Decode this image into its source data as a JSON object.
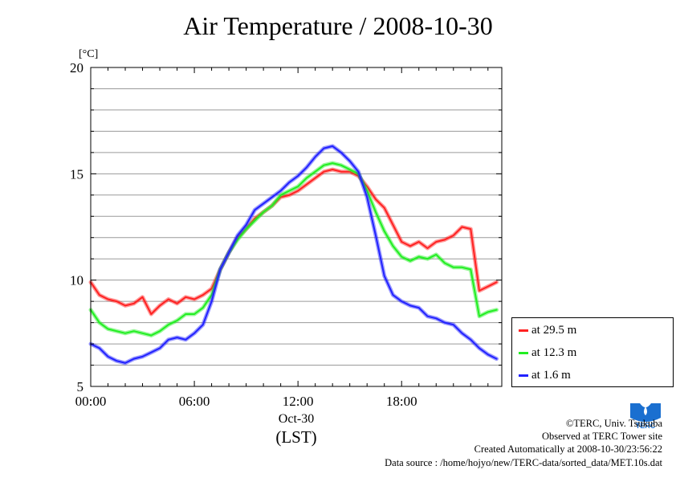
{
  "chart_data": {
    "type": "line",
    "title": "Air Temperature / 2008-10-30",
    "ylabel": "[°C]",
    "xlabel_date": "Oct-30",
    "xlabel_zone": "(LST)",
    "x_unit": "hour",
    "xlim": [
      0,
      23.8
    ],
    "ylim": [
      5,
      20
    ],
    "yticks": [
      5,
      10,
      15,
      20
    ],
    "yminor_step": 1,
    "xticks": [
      {
        "value": 0,
        "label": "00:00"
      },
      {
        "value": 6,
        "label": "06:00"
      },
      {
        "value": 12,
        "label": "12:00"
      },
      {
        "value": 18,
        "label": "18:00"
      }
    ],
    "grid": true,
    "legend_placement": "right-bottom outside",
    "x": [
      0,
      0.5,
      1,
      1.5,
      2,
      2.5,
      3,
      3.5,
      4,
      4.5,
      5,
      5.5,
      6,
      6.5,
      7,
      7.5,
      8,
      8.5,
      9,
      9.5,
      10,
      10.5,
      11,
      11.5,
      12,
      12.5,
      13,
      13.5,
      14,
      14.5,
      15,
      15.5,
      16,
      16.5,
      17,
      17.5,
      18,
      18.5,
      19,
      19.5,
      20,
      20.5,
      21,
      21.5,
      22,
      22.5,
      23,
      23.5
    ],
    "series": [
      {
        "name": "at 29.5 m",
        "color": "#ff2222",
        "values": [
          9.9,
          9.3,
          9.1,
          9.0,
          8.8,
          8.9,
          9.2,
          8.4,
          8.8,
          9.1,
          8.9,
          9.2,
          9.1,
          9.3,
          9.6,
          10.5,
          11.3,
          12.0,
          12.4,
          12.9,
          13.2,
          13.5,
          13.9,
          14.0,
          14.2,
          14.5,
          14.8,
          15.1,
          15.2,
          15.1,
          15.1,
          14.9,
          14.4,
          13.8,
          13.4,
          12.6,
          11.8,
          11.6,
          11.8,
          11.5,
          11.8,
          11.9,
          12.1,
          12.5,
          12.4,
          9.5,
          9.7,
          9.9
        ]
      },
      {
        "name": "at 12.3 m",
        "color": "#22ee22",
        "values": [
          8.6,
          8.0,
          7.7,
          7.6,
          7.5,
          7.6,
          7.5,
          7.4,
          7.6,
          7.9,
          8.1,
          8.4,
          8.4,
          8.7,
          9.3,
          10.5,
          11.3,
          11.9,
          12.4,
          12.8,
          13.2,
          13.5,
          14.0,
          14.2,
          14.4,
          14.8,
          15.1,
          15.4,
          15.5,
          15.4,
          15.2,
          15.0,
          14.2,
          13.2,
          12.3,
          11.6,
          11.1,
          10.9,
          11.1,
          11.0,
          11.2,
          10.8,
          10.6,
          10.6,
          10.5,
          8.3,
          8.5,
          8.6
        ]
      },
      {
        "name": "at 1.6 m",
        "color": "#2222ff",
        "values": [
          7.0,
          6.8,
          6.4,
          6.2,
          6.1,
          6.3,
          6.4,
          6.6,
          6.8,
          7.2,
          7.3,
          7.2,
          7.5,
          7.9,
          9.0,
          10.5,
          11.3,
          12.1,
          12.6,
          13.3,
          13.6,
          13.9,
          14.2,
          14.6,
          14.9,
          15.3,
          15.8,
          16.2,
          16.3,
          16.0,
          15.6,
          15.1,
          13.9,
          12.1,
          10.2,
          9.3,
          9.0,
          8.8,
          8.7,
          8.3,
          8.2,
          8.0,
          7.9,
          7.5,
          7.2,
          6.8,
          6.5,
          6.3
        ]
      }
    ]
  },
  "footer": {
    "copyright": "©TERC, Univ. Tsukuba",
    "observed": "Observed at TERC Tower site",
    "created": "Created Automatically at 2008-10-30/23:56:22",
    "source": "Data source : /home/hojyo/new/TERC-data/sorted_data/MET.10s.dat"
  },
  "logo": {
    "text": "TERC",
    "color": "#1a6fd0"
  }
}
